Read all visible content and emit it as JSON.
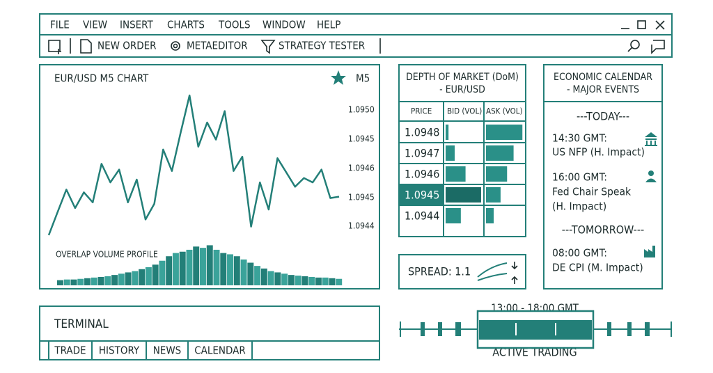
{
  "menu": [
    "FILE",
    "VIEW",
    "INSERT",
    "CHARTS",
    "TOOLS",
    "WINDOW",
    "HELP"
  ],
  "toolbar": [
    "NEW ORDER",
    "METAEDITOR",
    "STRATEGY TESTER"
  ],
  "chart_data": {
    "type": "line",
    "title": "EUR/USD M5 CHART",
    "timeframe": "M5",
    "price_labels": [
      "1.0950",
      "1.0945",
      "1.0946",
      "1.0945",
      "1.0944"
    ],
    "values": [
      1,
      17,
      33,
      20,
      31,
      24,
      51,
      38,
      47,
      24,
      40,
      12,
      23,
      61,
      46,
      73,
      99,
      63,
      80,
      68,
      88,
      46,
      56,
      7,
      38,
      19,
      55,
      45,
      35,
      41,
      38,
      47,
      27,
      28
    ],
    "ylim": [
      0,
      100
    ],
    "color": "#237f78",
    "volume_profile": {
      "label": "OVERLAP VOLUME PROFILE",
      "ylim": [
        0,
        70
      ],
      "values": [
        8,
        9,
        9,
        10,
        11,
        12,
        13,
        14,
        16,
        18,
        20,
        22,
        25,
        28,
        32,
        38,
        45,
        50,
        52,
        55,
        60,
        58,
        62,
        55,
        50,
        48,
        45,
        40,
        35,
        30,
        26,
        22,
        20,
        18,
        16,
        15,
        14,
        13,
        12,
        12,
        11,
        10
      ]
    }
  },
  "depth_of_market": {
    "title": "DEPTH OF MARKET (DoM)",
    "subtitle": "- EUR/USD",
    "columns": [
      "PRICE",
      "BID (VOL)",
      "ASK (VOL)"
    ],
    "vol_max": 100,
    "highlight": 3,
    "rows": [
      {
        "price": "1.0948",
        "bid": 8,
        "ask": 95
      },
      {
        "price": "1.0947",
        "bid": 25,
        "ask": 72
      },
      {
        "price": "1.0946",
        "bid": 55,
        "ask": 55
      },
      {
        "price": "1.0945",
        "bid": 98,
        "ask": 38
      },
      {
        "price": "1.0944",
        "bid": 42,
        "ask": 20
      }
    ]
  },
  "spread": "SPREAD: 1.1",
  "calendar": {
    "title": "ECONOMIC CALENDAR",
    "subtitle": "- MAJOR EVENTS",
    "today": "---TODAY---",
    "tomorrow": "---TOMORROW---",
    "events": [
      [
        "14:30 GMT:",
        "US NFP (H. Impact)"
      ],
      [
        "16:00 GMT:",
        "Fed Chair Speak",
        "(H. Impact)"
      ],
      [
        "08:00 GMT:",
        "DE CPI (M. Impact)"
      ]
    ]
  },
  "terminal": {
    "title": "TERMINAL",
    "tabs": [
      "TRADE",
      "HISTORY",
      "NEWS",
      "CALENDAR"
    ]
  },
  "session": {
    "range": "13:00 - 18:00 GMT",
    "label": "ACTIVE TRADING"
  }
}
